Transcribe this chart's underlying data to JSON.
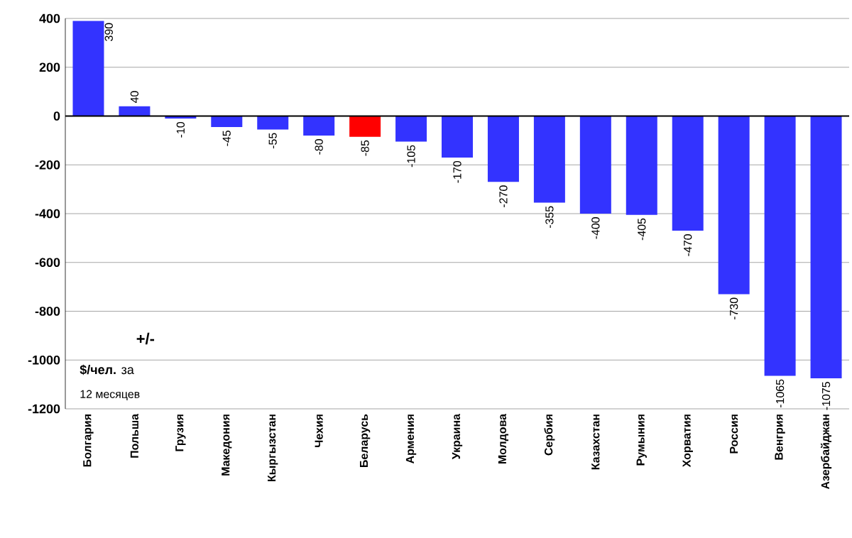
{
  "chart_data": {
    "type": "bar",
    "categories": [
      "Болгария",
      "Польша",
      "Грузия",
      "Македония",
      "Кыргызстан",
      "Чехия",
      "Беларусь",
      "Армения",
      "Украина",
      "Молдова",
      "Сербия",
      "Казахстан",
      "Румыния",
      "Хорватия",
      "Россия",
      "Венгрия",
      "Азербайджан"
    ],
    "values": [
      390,
      40,
      -10,
      -45,
      -55,
      -80,
      -85,
      -105,
      -170,
      -270,
      -355,
      -400,
      -405,
      -470,
      -730,
      -1065,
      -1075
    ],
    "colors": [
      "#3333ff",
      "#3333ff",
      "#3333ff",
      "#3333ff",
      "#3333ff",
      "#3333ff",
      "#ff0000",
      "#3333ff",
      "#3333ff",
      "#3333ff",
      "#3333ff",
      "#3333ff",
      "#3333ff",
      "#3333ff",
      "#3333ff",
      "#3333ff",
      "#3333ff"
    ],
    "ylim": [
      -1200,
      400
    ],
    "yticks": [
      -1200,
      -1000,
      -800,
      -600,
      -400,
      -200,
      0,
      200,
      400
    ],
    "grid": "y",
    "data_labels": true,
    "annotations": [
      "**+/-**",
      "**$/чел.** за",
      "12 месяцев"
    ]
  }
}
